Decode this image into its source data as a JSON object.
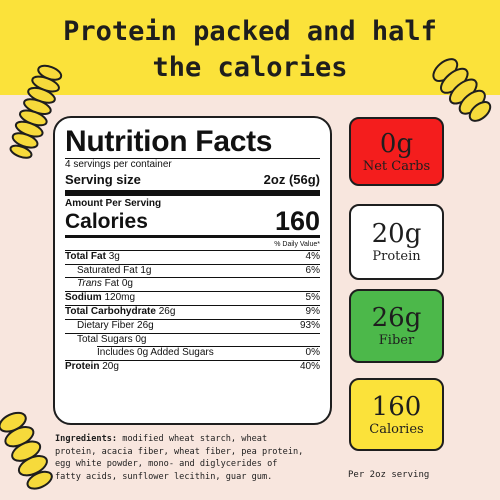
{
  "headline": {
    "line1": "Protein packed and half",
    "line2": "the calories"
  },
  "colors": {
    "top_band": "#fbe23a",
    "background": "#f8e6de",
    "pasta": "#f6da3b",
    "badge_red": "#f41d1d",
    "badge_white": "#ffffff",
    "badge_green": "#4cb84a",
    "badge_yellow": "#fbe23a"
  },
  "nutrition": {
    "title": "Nutrition Facts",
    "servings": "4 servings per container",
    "serving_size_label": "Serving size",
    "serving_size_value": "2oz (56g)",
    "amount_per_serving": "Amount Per Serving",
    "calories_label": "Calories",
    "calories_value": "160",
    "daily_value_header": "% Daily Value*",
    "rows": [
      {
        "label": "Total Fat",
        "amount": "3g",
        "dv": "4%"
      },
      {
        "label": "Saturated Fat",
        "amount": "1g",
        "dv": "6%"
      },
      {
        "label": "Trans",
        "amount": "Fat 0g",
        "dv": ""
      },
      {
        "label": "Sodium",
        "amount": "120mg",
        "dv": "5%"
      },
      {
        "label": "Total Carbohydrate",
        "amount": "26g",
        "dv": "9%"
      },
      {
        "label": "Dietary Fiber",
        "amount": "26g",
        "dv": "93%"
      },
      {
        "label": "Total Sugars",
        "amount": "0g",
        "dv": ""
      },
      {
        "label": "Includes 0g Added Sugars",
        "amount": "",
        "dv": "0%"
      },
      {
        "label": "Protein",
        "amount": "20g",
        "dv": "40%"
      }
    ]
  },
  "ingredients": {
    "label": "Ingredients:",
    "line1": " modified wheat starch, wheat",
    "line2": "protein, acacia fiber, wheat fiber, pea protein,",
    "line3": "egg white powder, mono- and diglycerides of",
    "line4": "fatty acids, sunflower lecithin, guar gum."
  },
  "badges": [
    {
      "value": "0g",
      "label": "Net Carbs"
    },
    {
      "value": "20g",
      "label": "Protein"
    },
    {
      "value": "26g",
      "label": "Fiber"
    },
    {
      "value": "160",
      "label": "Calories"
    }
  ],
  "per_serving": "Per 2oz serving",
  "icons": [
    "rotini-pasta-icon"
  ]
}
